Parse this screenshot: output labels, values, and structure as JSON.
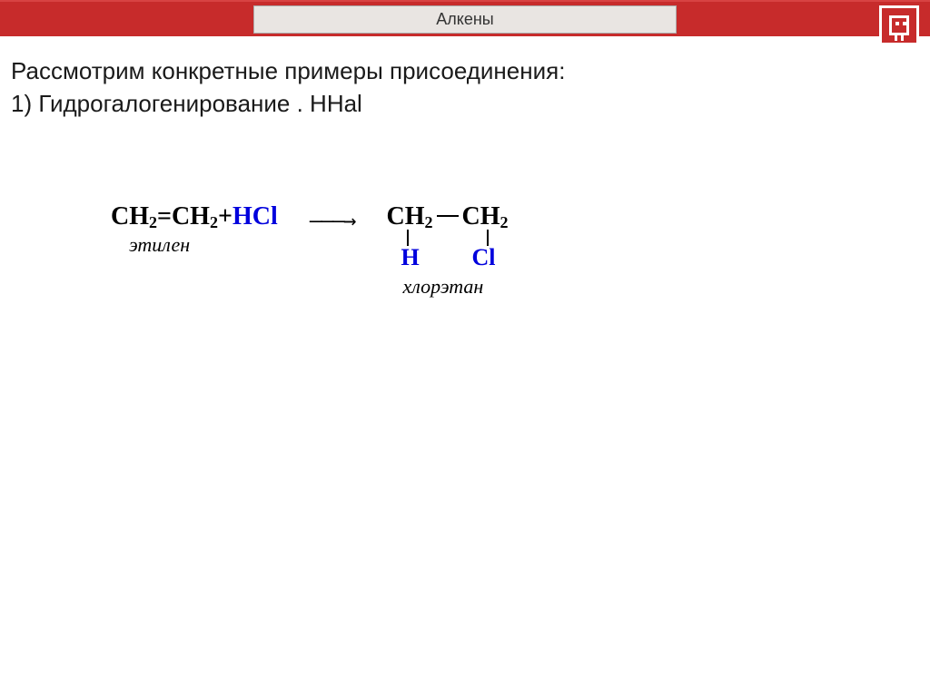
{
  "header": {
    "title": "Алкены"
  },
  "intro": {
    "line1": "Рассмотрим конкретные примеры присоединения:",
    "line2": "1) Гидрогалогенирование . HHal"
  },
  "equation": {
    "reactant_left": {
      "part1": "CH",
      "sub1": "2",
      "part2": "=CH",
      "sub2": "2",
      "plus": " + ",
      "reagent": "HCl",
      "label": "этилен"
    },
    "arrow": "———→",
    "product": {
      "c1": "CH",
      "c1sub": "2",
      "c2": "CH",
      "c2sub": "2",
      "sub_h": "H",
      "sub_cl": "Cl",
      "label": "хлорэтан"
    }
  },
  "colors": {
    "header_bg": "#c72b2b",
    "reagent_color": "#0000dd",
    "text_color": "#1a1a1a"
  }
}
